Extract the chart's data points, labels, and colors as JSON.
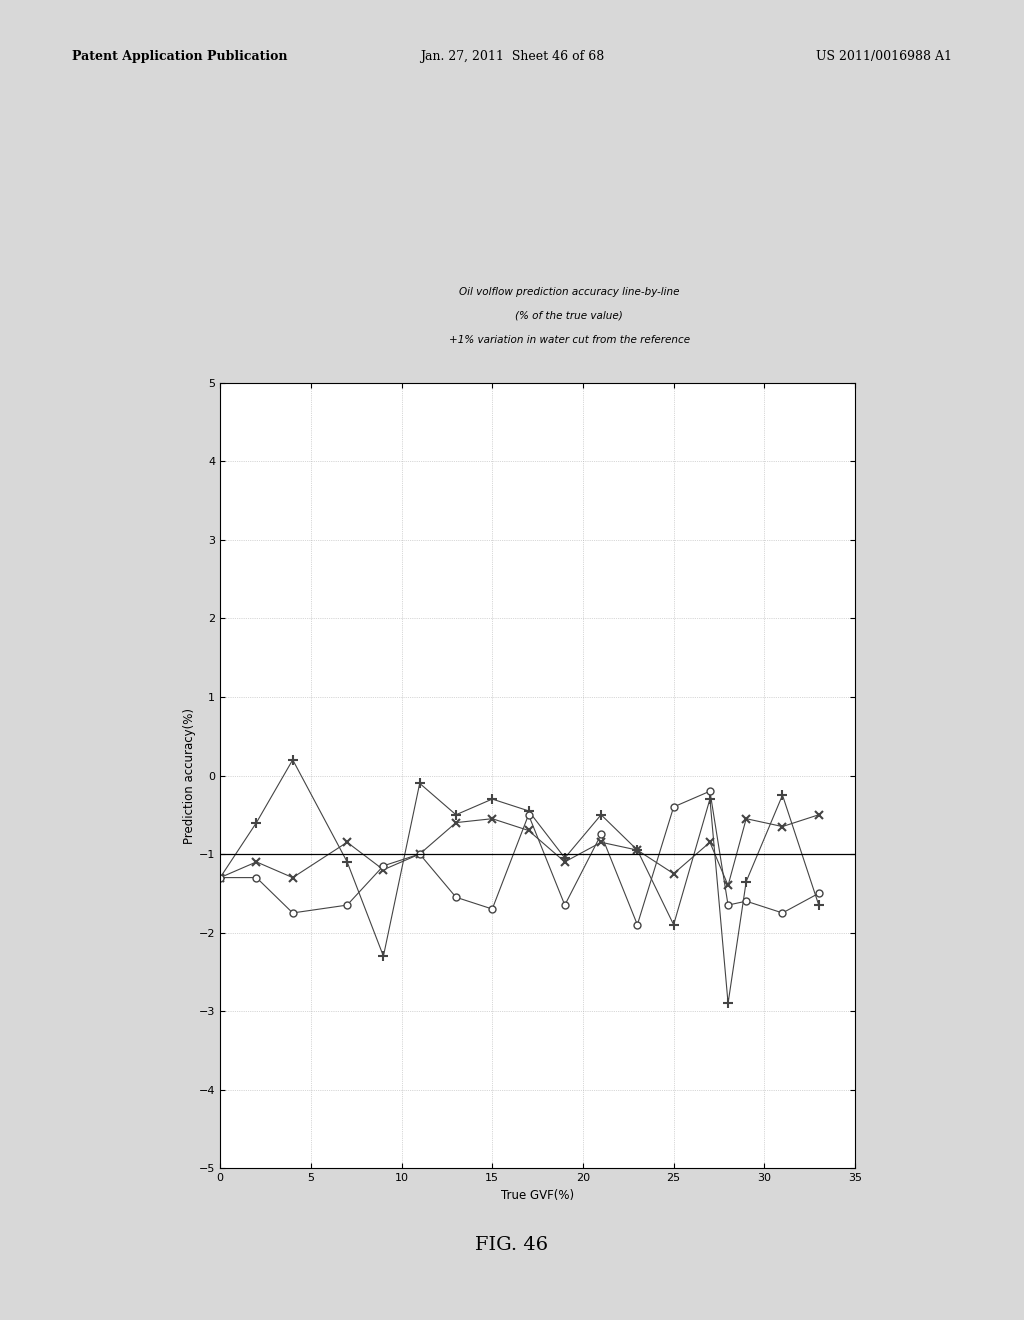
{
  "title_line1": "Oil volflow prediction accuracy line-by-line",
  "title_line2": "(% of the true value)",
  "title_line3": "+1% variation in water cut from the reference",
  "xlabel": "True GVF(%)",
  "ylabel": "Prediction accuracy(%)",
  "xlim": [
    0,
    35
  ],
  "ylim": [
    -5,
    5
  ],
  "xticks": [
    0,
    5,
    10,
    15,
    20,
    25,
    30,
    35
  ],
  "yticks": [
    -5,
    -4,
    -3,
    -2,
    -1,
    0,
    1,
    2,
    3,
    4,
    5
  ],
  "hline_y": -1.0,
  "series": [
    {
      "name": "series_plus",
      "marker": "+",
      "color": "#444444",
      "x": [
        0,
        2,
        4,
        7,
        9,
        11,
        13,
        15,
        17,
        19,
        21,
        23,
        25,
        27,
        28,
        29,
        31,
        33
      ],
      "y": [
        -1.3,
        -0.6,
        0.2,
        -1.1,
        -2.3,
        -0.1,
        -0.5,
        -0.3,
        -0.45,
        -1.05,
        -0.5,
        -0.95,
        -1.9,
        -0.3,
        -2.9,
        -1.35,
        -0.25,
        -1.65
      ]
    },
    {
      "name": "series_x",
      "marker": "x",
      "color": "#444444",
      "x": [
        0,
        2,
        4,
        7,
        9,
        11,
        13,
        15,
        17,
        19,
        21,
        23,
        25,
        27,
        28,
        29,
        31,
        33
      ],
      "y": [
        -1.3,
        -1.1,
        -1.3,
        -0.85,
        -1.2,
        -1.0,
        -0.6,
        -0.55,
        -0.7,
        -1.1,
        -0.85,
        -0.95,
        -1.25,
        -0.85,
        -1.4,
        -0.55,
        -0.65,
        -0.5
      ]
    },
    {
      "name": "series_o",
      "marker": "o",
      "color": "#444444",
      "x": [
        0,
        2,
        4,
        7,
        9,
        11,
        13,
        15,
        17,
        19,
        21,
        23,
        25,
        27,
        28,
        29,
        31,
        33
      ],
      "y": [
        -1.3,
        -1.3,
        -1.75,
        -1.65,
        -1.15,
        -1.0,
        -1.55,
        -1.7,
        -0.5,
        -1.65,
        -0.75,
        -1.9,
        -0.4,
        -0.2,
        -1.65,
        -1.6,
        -1.75,
        -1.5
      ]
    }
  ],
  "fig_title": "FIG. 46",
  "header_left": "Patent Application Publication",
  "header_mid": "Jan. 27, 2011  Sheet 46 of 68",
  "header_right": "US 2011/0016988 A1",
  "background_color": "#d8d8d8",
  "plot_bg_color": "#ffffff",
  "page_bg_color": "#e8e8e8"
}
